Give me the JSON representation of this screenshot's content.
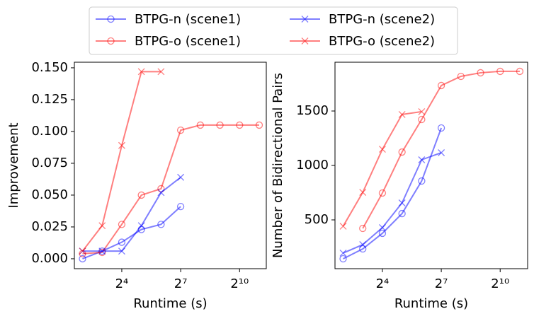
{
  "legend": {
    "location": "upper center",
    "columns": 2
  },
  "chart_data": [
    {
      "type": "line",
      "xlabel": "Runtime (s)",
      "ylabel": "Improvement",
      "xscale": "log2",
      "x": [
        4,
        8,
        16,
        32,
        64,
        128,
        256,
        512,
        1024,
        2048
      ],
      "xlim": [
        3,
        2630
      ],
      "xticks": [
        {
          "value": 16,
          "label": "2⁴"
        },
        {
          "value": 128,
          "label": "2⁷"
        },
        {
          "value": 1024,
          "label": "2¹⁰"
        }
      ],
      "ylim": [
        -0.0078,
        0.1544
      ],
      "yticks": [
        {
          "value": 0,
          "label": "0.000"
        },
        {
          "value": 0.025,
          "label": "0.025"
        },
        {
          "value": 0.05,
          "label": "0.050"
        },
        {
          "value": 0.075,
          "label": "0.075"
        },
        {
          "value": 0.1,
          "label": "0.100"
        },
        {
          "value": 0.125,
          "label": "0.125"
        },
        {
          "value": 0.15,
          "label": "0.150"
        }
      ],
      "series": [
        {
          "name": "BTPG-n (scene1)",
          "color": "#0000ff",
          "alpha": 0.5,
          "marker": "o",
          "values": [
            0.0,
            0.006,
            0.013,
            0.023,
            0.027,
            0.041,
            null,
            null,
            null,
            null
          ]
        },
        {
          "name": "BTPG-o (scene1)",
          "color": "#ff0000",
          "alpha": 0.5,
          "marker": "o",
          "values": [
            0.004,
            0.005,
            0.027,
            0.05,
            0.055,
            0.101,
            0.105,
            0.105,
            0.105,
            0.105
          ]
        },
        {
          "name": "BTPG-n (scene2)",
          "color": "#0000ff",
          "alpha": 0.5,
          "marker": "x",
          "values": [
            0.006,
            0.006,
            0.006,
            0.026,
            0.052,
            0.064,
            null,
            null,
            null,
            null
          ]
        },
        {
          "name": "BTPG-o (scene2)",
          "color": "#ff0000",
          "alpha": 0.5,
          "marker": "x",
          "values": [
            0.006,
            0.026,
            0.089,
            0.147,
            0.147,
            null,
            null,
            null,
            null,
            null
          ]
        }
      ]
    },
    {
      "type": "line",
      "xlabel": "Runtime (s)",
      "ylabel": "Number of Bidirectional Pairs",
      "xscale": "log2",
      "x": [
        4,
        8,
        16,
        32,
        64,
        128,
        256,
        512,
        1024,
        2048
      ],
      "xlim": [
        3,
        2700
      ],
      "xticks": [
        {
          "value": 16,
          "label": "2⁴"
        },
        {
          "value": 128,
          "label": "2⁷"
        },
        {
          "value": 1024,
          "label": "2¹⁰"
        }
      ],
      "ylim": [
        52,
        1948
      ],
      "yticks": [
        500,
        1000,
        1500
      ],
      "series": [
        {
          "color": "#0000ff",
          "alpha": 0.5,
          "marker": "o",
          "values": [
            143,
            234,
            377,
            558,
            857,
            1344,
            null,
            null,
            null,
            null
          ]
        },
        {
          "color": "#ff0000",
          "alpha": 0.5,
          "marker": "o",
          "values": [
            null,
            422,
            747,
            1123,
            1422,
            1734,
            1818,
            1851,
            1864,
            1864
          ]
        },
        {
          "color": "#0000ff",
          "alpha": 0.5,
          "marker": "x",
          "values": [
            195,
            273,
            429,
            656,
            1052,
            1117,
            null,
            null,
            null,
            null
          ]
        },
        {
          "color": "#ff0000",
          "alpha": 0.5,
          "marker": "x",
          "values": [
            442,
            753,
            1149,
            1468,
            1494,
            null,
            null,
            null,
            null,
            null
          ]
        }
      ]
    }
  ]
}
